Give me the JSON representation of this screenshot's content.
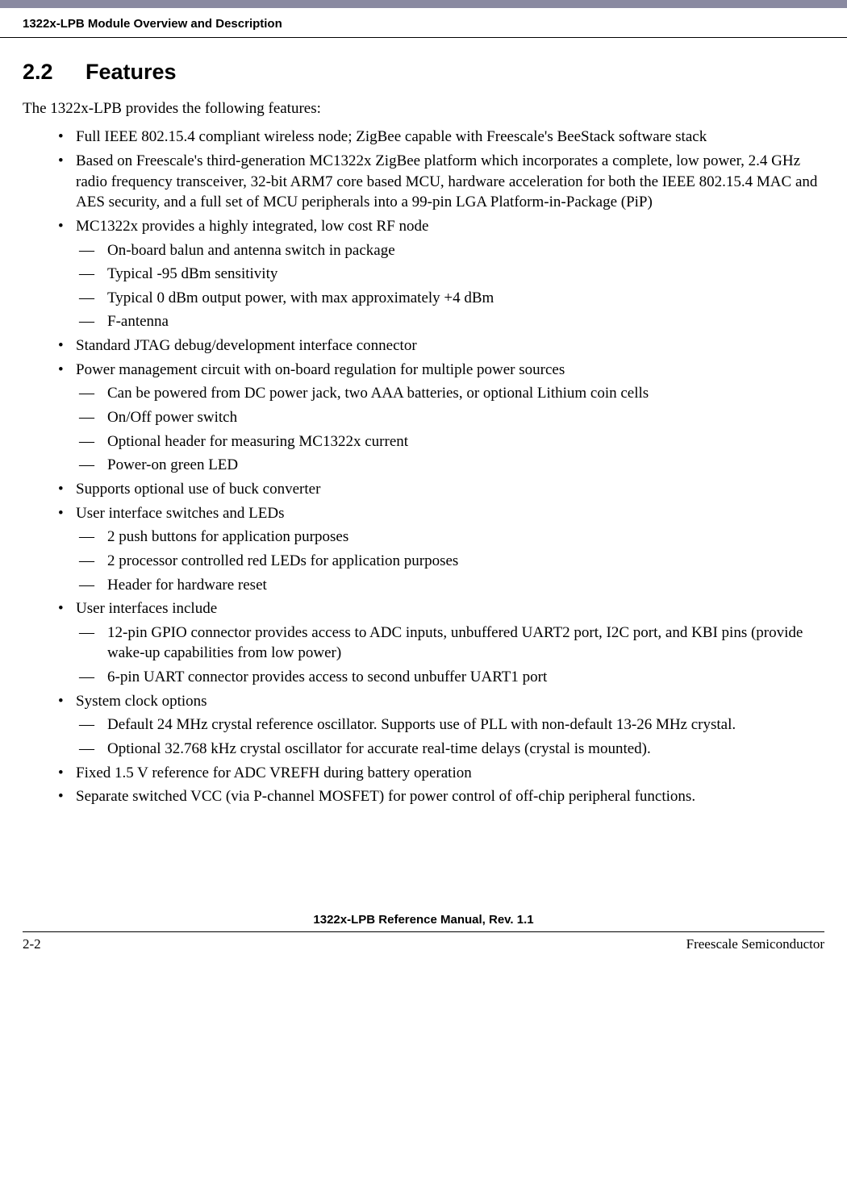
{
  "running_header": "1322x-LPB Module Overview and Description",
  "section": {
    "number": "2.2",
    "title": "Features"
  },
  "intro": "The 1322x-LPB provides the following features:",
  "features": [
    {
      "text": "Full IEEE 802.15.4 compliant wireless node; ZigBee capable with Freescale's BeeStack software stack"
    },
    {
      "text": "Based on Freescale's third-generation MC1322x ZigBee platform which incorporates a complete, low power, 2.4 GHz radio frequency transceiver, 32-bit ARM7 core based MCU, hardware acceleration for both the IEEE 802.15.4 MAC and AES security, and a full set of MCU peripherals into a 99-pin LGA Platform-in-Package (PiP)"
    },
    {
      "text": "MC1322x provides a highly integrated, low cost RF node",
      "sub": [
        "On-board balun and antenna switch in package",
        "Typical -95 dBm sensitivity",
        "Typical 0 dBm output power, with max approximately +4 dBm",
        "F-antenna"
      ]
    },
    {
      "text": "Standard JTAG debug/development interface connector"
    },
    {
      "text": "Power management circuit with on-board regulation for multiple power sources",
      "sub": [
        "Can be powered from DC power jack, two AAA batteries, or optional Lithium coin cells",
        "On/Off power switch",
        "Optional header for measuring MC1322x current",
        "Power-on green LED"
      ]
    },
    {
      "text": "Supports optional use of buck converter"
    },
    {
      "text": "User interface switches and LEDs",
      "sub": [
        "2 push buttons for application purposes",
        "2 processor controlled red LEDs for application purposes",
        "Header for hardware reset"
      ]
    },
    {
      "text": "User interfaces include",
      "sub": [
        "12-pin GPIO connector provides access to ADC inputs, unbuffered UART2 port, I2C port, and KBI pins (provide wake-up capabilities from low power)",
        "6-pin UART connector provides access to second unbuffer UART1 port"
      ]
    },
    {
      "text": "System clock options",
      "sub": [
        "Default 24 MHz crystal reference oscillator. Supports use of PLL with non-default 13-26 MHz crystal.",
        "Optional 32.768 kHz crystal oscillator for accurate real-time delays (crystal is mounted)."
      ]
    },
    {
      "text": "Fixed 1.5 V reference for ADC VREFH during battery operation"
    },
    {
      "text": "Separate switched VCC (via P-channel MOSFET) for power control of off-chip peripheral functions."
    }
  ],
  "footer": {
    "manual_title": "1322x-LPB Reference Manual, Rev. 1.1",
    "page_number": "2-2",
    "company": "Freescale Semiconductor"
  },
  "colors": {
    "header_bar": "#8a8aa1",
    "text": "#000000",
    "background": "#ffffff",
    "rule": "#000000"
  }
}
